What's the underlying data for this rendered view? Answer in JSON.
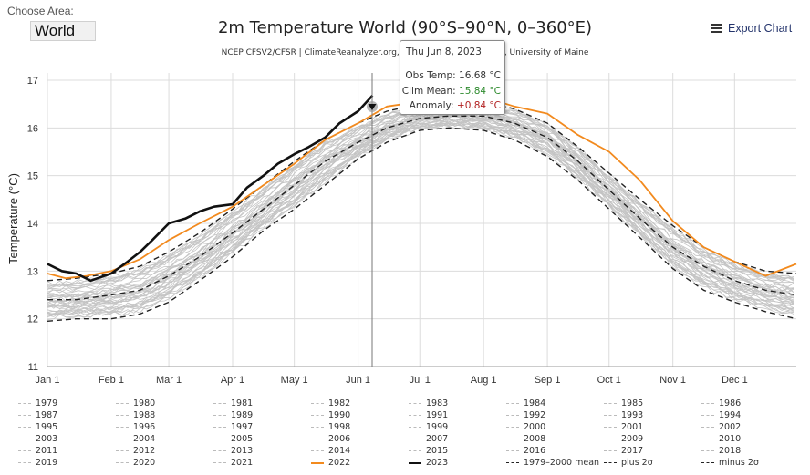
{
  "area": {
    "label": "Choose Area:",
    "value": "World"
  },
  "export_label": "Export Chart",
  "chart_data": {
    "type": "line",
    "title": "2m Temperature World (90°S–90°N, 0–360°E)",
    "subtitle": "NCEP CFSV2/CFSR | ClimateReanalyzer.org, Climate Change Institute, University of Maine",
    "ylabel": "Temperature (°C)",
    "ylim": [
      11,
      17
    ],
    "yticks": [
      "11",
      "12",
      "13",
      "14",
      "15",
      "16",
      "17"
    ],
    "xticks": [
      "Jan 1",
      "Feb 1",
      "Mar 1",
      "Apr 1",
      "May 1",
      "Jun 1",
      "Jul 1",
      "Aug 1",
      "Sep 1",
      "Oct 1",
      "Nov 1",
      "Dec 1"
    ],
    "xtick_days": [
      1,
      32,
      60,
      91,
      121,
      152,
      182,
      213,
      244,
      274,
      305,
      335
    ],
    "grid": true,
    "series": [
      {
        "name": "1979–2000 mean",
        "style": "dash",
        "color": "#222222",
        "x": [
          1,
          15,
          32,
          46,
          60,
          75,
          91,
          106,
          121,
          136,
          152,
          166,
          182,
          196,
          213,
          228,
          244,
          259,
          274,
          289,
          305,
          320,
          335,
          350,
          365
        ],
        "values": [
          12.4,
          12.4,
          12.5,
          12.6,
          12.9,
          13.3,
          13.8,
          14.3,
          14.8,
          15.3,
          15.7,
          16.0,
          16.2,
          16.25,
          16.25,
          16.1,
          15.8,
          15.3,
          14.7,
          14.1,
          13.5,
          13.1,
          12.8,
          12.6,
          12.5
        ]
      },
      {
        "name": "plus 2σ",
        "style": "dash",
        "color": "#222222",
        "x": [
          1,
          15,
          32,
          46,
          60,
          75,
          91,
          106,
          121,
          136,
          152,
          166,
          182,
          196,
          213,
          228,
          244,
          259,
          274,
          289,
          305,
          320,
          335,
          350,
          365
        ],
        "values": [
          12.8,
          12.85,
          12.95,
          13.1,
          13.4,
          13.8,
          14.3,
          14.8,
          15.3,
          15.75,
          16.1,
          16.35,
          16.5,
          16.55,
          16.55,
          16.4,
          16.1,
          15.6,
          15.05,
          14.5,
          13.95,
          13.5,
          13.2,
          13.0,
          12.95
        ]
      },
      {
        "name": "minus 2σ",
        "style": "dash",
        "color": "#222222",
        "x": [
          1,
          15,
          32,
          46,
          60,
          75,
          91,
          106,
          121,
          136,
          152,
          166,
          182,
          196,
          213,
          228,
          244,
          259,
          274,
          289,
          305,
          320,
          335,
          350,
          365
        ],
        "values": [
          11.95,
          12.0,
          12.0,
          12.1,
          12.35,
          12.8,
          13.3,
          13.85,
          14.3,
          14.8,
          15.35,
          15.7,
          15.95,
          16.0,
          15.95,
          15.75,
          15.4,
          14.9,
          14.3,
          13.7,
          13.05,
          12.6,
          12.35,
          12.15,
          12.0
        ]
      },
      {
        "name": "2022",
        "style": "solid",
        "color": "#f28a1e",
        "x": [
          1,
          10,
          20,
          32,
          46,
          60,
          75,
          91,
          106,
          121,
          136,
          152,
          166,
          182,
          196,
          213,
          228,
          244,
          259,
          274,
          289,
          305,
          320,
          335,
          350,
          365
        ],
        "values": [
          12.95,
          12.85,
          12.9,
          13.0,
          13.25,
          13.65,
          14.0,
          14.35,
          14.8,
          15.25,
          15.75,
          16.1,
          16.45,
          16.55,
          16.6,
          16.65,
          16.45,
          16.3,
          15.85,
          15.5,
          14.9,
          14.05,
          13.5,
          13.2,
          12.9,
          13.15
        ]
      },
      {
        "name": "2023",
        "style": "solid",
        "color": "#111111",
        "x": [
          1,
          8,
          15,
          22,
          32,
          40,
          46,
          52,
          60,
          68,
          75,
          82,
          91,
          98,
          106,
          113,
          121,
          128,
          136,
          143,
          152,
          159
        ],
        "values": [
          13.15,
          13.0,
          12.95,
          12.8,
          12.95,
          13.2,
          13.4,
          13.65,
          14.0,
          14.1,
          14.25,
          14.35,
          14.4,
          14.75,
          15.0,
          15.25,
          15.45,
          15.6,
          15.8,
          16.1,
          16.35,
          16.68
        ]
      }
    ]
  },
  "tooltip": {
    "date": "Thu Jun 8, 2023",
    "obs_label": "Obs Temp:",
    "obs_value": "16.68 °C",
    "clim_label": "Clim Mean:",
    "clim_value": "15.84 °C",
    "anom_label": "Anomaly:",
    "anom_value": "+0.84 °C",
    "clim_color": "#2e8b2e",
    "anom_color": "#b22222"
  },
  "legend": [
    "1979",
    "1980",
    "1981",
    "1982",
    "1983",
    "1984",
    "1985",
    "1986",
    "1987",
    "1988",
    "1989",
    "1990",
    "1991",
    "1992",
    "1993",
    "1994",
    "1995",
    "1996",
    "1997",
    "1998",
    "1999",
    "2000",
    "2001",
    "2002",
    "2003",
    "2004",
    "2005",
    "2006",
    "2007",
    "2008",
    "2009",
    "2010",
    "2011",
    "2012",
    "2013",
    "2014",
    "2015",
    "2016",
    "2017",
    "2018",
    "2019",
    "2020",
    "2021",
    "2022",
    "2023",
    "1979–2000 mean",
    "plus 2σ",
    "minus 2σ"
  ]
}
